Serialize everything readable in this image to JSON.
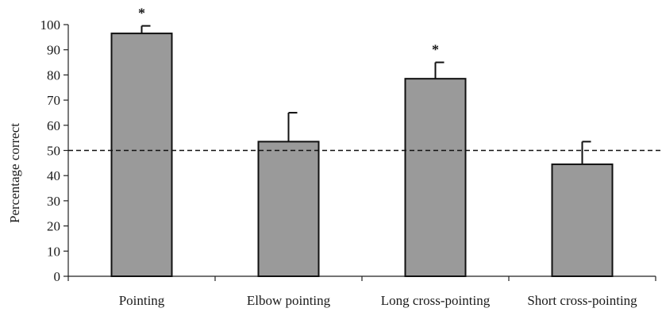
{
  "chart_data": {
    "type": "bar",
    "title": "",
    "xlabel": "",
    "ylabel": "Percentage correct",
    "ylim": [
      0,
      100
    ],
    "yticks": [
      0,
      10,
      20,
      30,
      40,
      50,
      60,
      70,
      80,
      90,
      100
    ],
    "categories": [
      "Pointing",
      "Elbow pointing",
      "Long cross-pointing",
      "Short cross-pointing"
    ],
    "values": [
      96.5,
      53.5,
      78.5,
      44.5
    ],
    "error_upper": [
      3,
      11.5,
      6.5,
      9
    ],
    "significance": [
      "*",
      "",
      "*",
      ""
    ],
    "reference_line": {
      "value": 50,
      "style": "dashed"
    },
    "grid": false,
    "legend": "none",
    "colors": {
      "bar_fill": "#9a9a9a",
      "bar_edge": "#111111",
      "axis": "#222222",
      "text": "#1a1a1a"
    }
  }
}
